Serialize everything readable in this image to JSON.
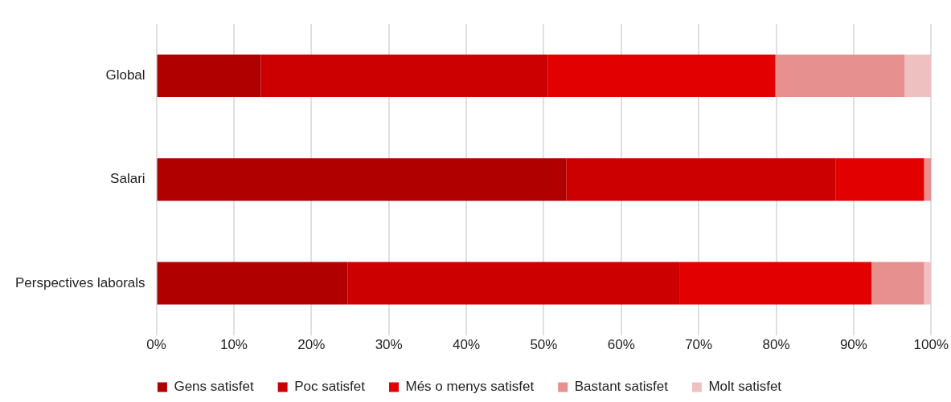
{
  "chart_data": {
    "type": "bar",
    "orientation": "horizontal",
    "stacked": true,
    "categories": [
      "Global",
      "Salari",
      "Perspectives laborals"
    ],
    "series": [
      {
        "name": "Gens satisfet",
        "color": "#b00000",
        "values": [
          13.5,
          52.9,
          24.7
        ]
      },
      {
        "name": "Poc satisfet",
        "color": "#cc0000",
        "values": [
          37.0,
          34.8,
          42.8
        ]
      },
      {
        "name": "Més o menys satisfet",
        "color": "#e30000",
        "values": [
          29.4,
          11.4,
          24.8
        ]
      },
      {
        "name": "Bastant satisfet",
        "color": "#e69090",
        "values": [
          16.7,
          0.9,
          6.8
        ]
      },
      {
        "name": "Molt satisfet",
        "color": "#efc0c0",
        "values": [
          3.4,
          0,
          0.9
        ]
      }
    ],
    "xlim": [
      0,
      100
    ],
    "xticks": [
      {
        "value": 0,
        "label": "0%"
      },
      {
        "value": 10,
        "label": "10%"
      },
      {
        "value": 20,
        "label": "20%"
      },
      {
        "value": 30,
        "label": "30%"
      },
      {
        "value": 40,
        "label": "40%"
      },
      {
        "value": 50,
        "label": "50%"
      },
      {
        "value": 60,
        "label": "60%"
      },
      {
        "value": 70,
        "label": "70%"
      },
      {
        "value": 80,
        "label": "80%"
      },
      {
        "value": 90,
        "label": "90%"
      },
      {
        "value": 100,
        "label": "100%"
      }
    ],
    "grid": "x",
    "legend": "bottom"
  }
}
